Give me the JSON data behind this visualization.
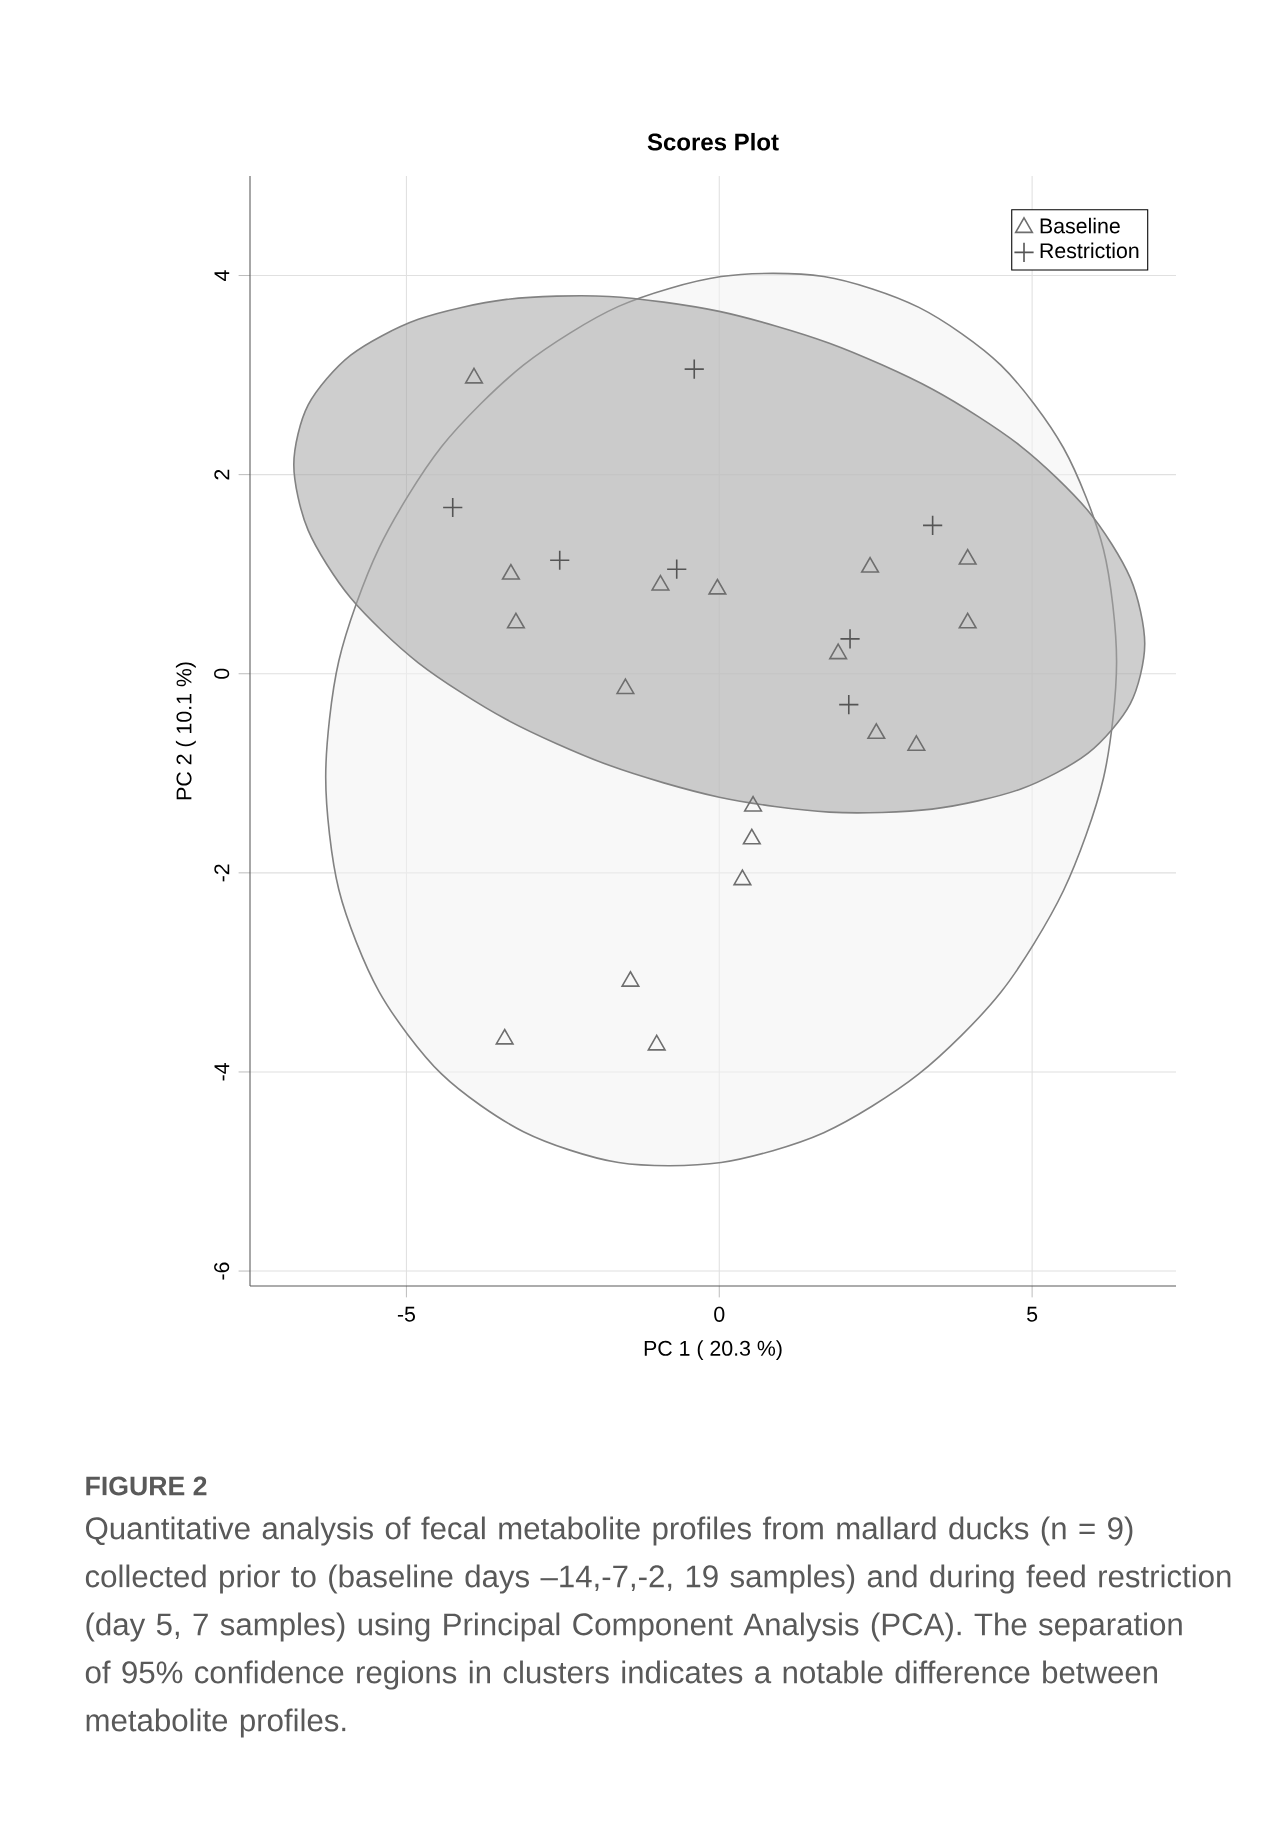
{
  "chart_data": {
    "type": "scatter",
    "title": "Scores Plot",
    "xlabel": "PC 1 ( 20.3 %)",
    "ylabel": "PC 2 ( 10.1 %)",
    "annotations": [
      "FIGURE 2",
      "Quantitative analysis of fecal metabolite profiles from mallard ducks (n = 9) collected prior to (baseline days –14,-7,-2, 19 samples) and during feed restriction (day 5, 7 samples) using Principal Component Analysis (PCA). The separation of 95% confidence regions in clusters indicates a notable difference between metabolite profiles."
    ],
    "xlim": [
      -7.5,
      7.3
    ],
    "ylim": [
      -6.15,
      5.0
    ],
    "xticks": [
      -5,
      0,
      5
    ],
    "yticks": [
      -6,
      -4,
      -2,
      0,
      2,
      4
    ],
    "grid": true,
    "legend": "top right",
    "series": [
      {
        "type": "area",
        "color": "#f3f3f3",
        "x": [
          6.35,
          6.14,
          5.5,
          4.5,
          3.19,
          1.67,
          0.03,
          -1.61,
          -3.13,
          -4.44,
          -5.44,
          -6.08,
          -6.29,
          -6.08,
          -5.44,
          -4.44,
          -3.13,
          -1.61,
          0.03,
          1.67,
          3.19,
          4.5,
          5.5,
          6.14
        ],
        "values": [
          0.12,
          1.25,
          2.27,
          3.1,
          3.68,
          3.99,
          3.99,
          3.69,
          3.1,
          2.28,
          1.26,
          0.13,
          -1.04,
          -2.17,
          -3.19,
          -4.02,
          -4.6,
          -4.91,
          -4.91,
          -4.61,
          -4.02,
          -3.2,
          -2.18,
          -1.05
        ]
      },
      {
        "type": "area",
        "color": "#a6a6a6",
        "x": [
          6.8,
          6.57,
          5.89,
          4.81,
          3.4,
          1.76,
          0,
          -1.76,
          -3.4,
          -4.81,
          -5.89,
          -6.57,
          -6.8,
          -6.57,
          -5.89,
          -4.81,
          -3.4,
          -1.76,
          0,
          1.76,
          3.4,
          4.81,
          5.89,
          6.57
        ],
        "values": [
          0.3,
          0.96,
          1.64,
          2.29,
          2.86,
          3.32,
          3.64,
          3.79,
          3.76,
          3.56,
          3.2,
          2.7,
          2.1,
          1.44,
          0.76,
          0.11,
          -0.46,
          -0.92,
          -1.24,
          -1.39,
          -1.36,
          -1.16,
          -0.8,
          -0.3
        ]
      },
      {
        "name": "Baseline",
        "type": "scatter",
        "marker": "triangle",
        "color": "#6e6e6e",
        "x": [
          -3.92,
          -3.33,
          -3.25,
          -0.94,
          -0.03,
          -1.5,
          2.41,
          3.97,
          3.97,
          1.9,
          2.51,
          3.15,
          0.54,
          0.52,
          0.37,
          -1.42,
          -3.43,
          -1.0
        ],
        "values": [
          2.97,
          1.0,
          0.51,
          0.89,
          0.85,
          -0.15,
          1.07,
          1.15,
          0.51,
          0.2,
          -0.6,
          -0.72,
          -1.33,
          -1.66,
          -2.07,
          -3.09,
          -3.67,
          -3.73
        ]
      },
      {
        "name": "Restriction",
        "type": "scatter",
        "marker": "cross",
        "color": "#555555",
        "x": [
          -0.4,
          -4.26,
          -2.55,
          -0.68,
          3.41,
          2.09,
          2.07
        ],
        "values": [
          3.06,
          1.67,
          1.14,
          1.05,
          1.49,
          0.35,
          -0.31
        ]
      }
    ]
  }
}
